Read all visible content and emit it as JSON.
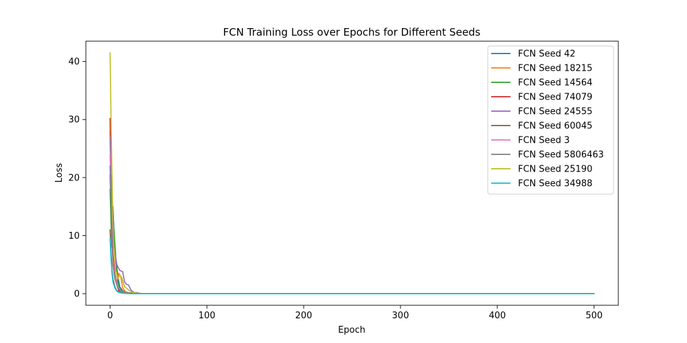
{
  "chart_data": {
    "type": "line",
    "title": "FCN Training Loss over Epochs for Different Seeds",
    "xlabel": "Epoch",
    "ylabel": "Loss",
    "xlim": [
      -25,
      525
    ],
    "ylim": [
      -2,
      43.5
    ],
    "xticks": [
      0,
      100,
      200,
      300,
      400,
      500
    ],
    "yticks": [
      0,
      10,
      20,
      30,
      40
    ],
    "grid": false,
    "legend_position": "top-right",
    "series": [
      {
        "name": "FCN Seed 42",
        "color": "#1f77b4",
        "points": [
          [
            0,
            20.5
          ],
          [
            1,
            14
          ],
          [
            2,
            9
          ],
          [
            3,
            14.5
          ],
          [
            4,
            11
          ],
          [
            6,
            6
          ],
          [
            8,
            3
          ],
          [
            10,
            1.2
          ],
          [
            13,
            0.5
          ],
          [
            18,
            0.2
          ],
          [
            25,
            0.05
          ],
          [
            40,
            0
          ],
          [
            500,
            0
          ]
        ]
      },
      {
        "name": "FCN Seed 18215",
        "color": "#ff7f0e",
        "points": [
          [
            0,
            28
          ],
          [
            1,
            18
          ],
          [
            2,
            10
          ],
          [
            3,
            6
          ],
          [
            5,
            3
          ],
          [
            7,
            2
          ],
          [
            9,
            3.5
          ],
          [
            11,
            3
          ],
          [
            13,
            1
          ],
          [
            16,
            0.3
          ],
          [
            22,
            0.05
          ],
          [
            40,
            0
          ],
          [
            500,
            0
          ]
        ]
      },
      {
        "name": "FCN Seed 14564",
        "color": "#2ca02c",
        "points": [
          [
            0,
            18
          ],
          [
            1,
            12
          ],
          [
            2,
            8
          ],
          [
            3,
            15
          ],
          [
            4,
            11
          ],
          [
            6,
            5
          ],
          [
            8,
            2
          ],
          [
            10,
            0.8
          ],
          [
            14,
            0.3
          ],
          [
            20,
            0.05
          ],
          [
            40,
            0
          ],
          [
            500,
            0
          ]
        ]
      },
      {
        "name": "FCN Seed 74079",
        "color": "#d62728",
        "points": [
          [
            0,
            30.2
          ],
          [
            1,
            20
          ],
          [
            2,
            12
          ],
          [
            3,
            7
          ],
          [
            5,
            3.5
          ],
          [
            7,
            1.5
          ],
          [
            9,
            0.5
          ],
          [
            12,
            0.3
          ],
          [
            16,
            0.1
          ],
          [
            25,
            0
          ],
          [
            500,
            0
          ]
        ]
      },
      {
        "name": "FCN Seed 24555",
        "color": "#9467bd",
        "points": [
          [
            0,
            27
          ],
          [
            1,
            19
          ],
          [
            2,
            13
          ],
          [
            3,
            10
          ],
          [
            5,
            7
          ],
          [
            7,
            5
          ],
          [
            10,
            4
          ],
          [
            13,
            3.8
          ],
          [
            15,
            2
          ],
          [
            17,
            1.6
          ],
          [
            19,
            1.5
          ],
          [
            22,
            0.5
          ],
          [
            26,
            0.1
          ],
          [
            35,
            0
          ],
          [
            500,
            0
          ]
        ]
      },
      {
        "name": "FCN Seed 60045",
        "color": "#8c564b",
        "points": [
          [
            0,
            11
          ],
          [
            1,
            7
          ],
          [
            2,
            4
          ],
          [
            3,
            2.5
          ],
          [
            5,
            1.2
          ],
          [
            7,
            0.5
          ],
          [
            10,
            0.2
          ],
          [
            15,
            0.05
          ],
          [
            25,
            0
          ],
          [
            500,
            0
          ]
        ]
      },
      {
        "name": "FCN Seed 3",
        "color": "#e377c2",
        "points": [
          [
            0,
            24
          ],
          [
            1,
            16
          ],
          [
            2,
            10
          ],
          [
            3,
            6
          ],
          [
            5,
            3
          ],
          [
            8,
            1.2
          ],
          [
            11,
            0.5
          ],
          [
            15,
            0.2
          ],
          [
            22,
            0.05
          ],
          [
            35,
            0
          ],
          [
            500,
            0
          ]
        ]
      },
      {
        "name": "FCN Seed 5806463",
        "color": "#7f7f7f",
        "points": [
          [
            0,
            22
          ],
          [
            1,
            15
          ],
          [
            2,
            9
          ],
          [
            3,
            5
          ],
          [
            5,
            2.5
          ],
          [
            8,
            1
          ],
          [
            11,
            0.4
          ],
          [
            16,
            0.1
          ],
          [
            27,
            0.2
          ],
          [
            32,
            0
          ],
          [
            500,
            0
          ]
        ]
      },
      {
        "name": "FCN Seed 25190",
        "color": "#bcbd22",
        "points": [
          [
            0,
            41.5
          ],
          [
            1,
            30
          ],
          [
            2,
            20
          ],
          [
            3,
            12
          ],
          [
            4,
            8
          ],
          [
            6,
            4
          ],
          [
            8,
            2.5
          ],
          [
            10,
            3.2
          ],
          [
            12,
            2.8
          ],
          [
            15,
            1.2
          ],
          [
            18,
            0.8
          ],
          [
            22,
            0.3
          ],
          [
            28,
            0.05
          ],
          [
            40,
            0
          ],
          [
            500,
            0
          ]
        ]
      },
      {
        "name": "FCN Seed 34988",
        "color": "#17becf",
        "points": [
          [
            0,
            9.5
          ],
          [
            1,
            6
          ],
          [
            2,
            3.5
          ],
          [
            3,
            2
          ],
          [
            5,
            1
          ],
          [
            7,
            0.4
          ],
          [
            10,
            0.15
          ],
          [
            15,
            0.05
          ],
          [
            25,
            0
          ],
          [
            500,
            0
          ]
        ]
      }
    ]
  }
}
